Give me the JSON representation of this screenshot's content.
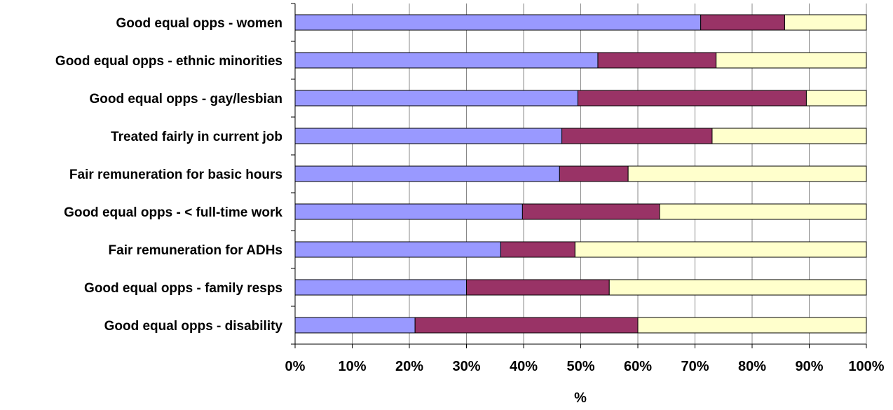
{
  "chart_data": {
    "type": "bar",
    "orientation": "horizontal",
    "stacked": "percent",
    "title": "",
    "xlabel": "%",
    "ylabel": "",
    "xlim": [
      0,
      100
    ],
    "x_ticks": [
      "0%",
      "10%",
      "20%",
      "30%",
      "40%",
      "50%",
      "60%",
      "70%",
      "80%",
      "90%",
      "100%"
    ],
    "grid": "vertical",
    "legend": "none",
    "categories": [
      "Good equal opps - women",
      "Good equal opps - ethnic minorities",
      "Good equal opps - gay/lesbian",
      "Treated fairly in current job",
      "Fair remuneration for basic hours",
      "Good equal opps - < full-time work",
      "Fair remuneration for ADHs",
      "Good equal opps - family resps",
      "Good equal opps - disability"
    ],
    "series": [
      {
        "color": "#9999ff",
        "values": [
          71,
          53,
          49.5,
          46.7,
          46.3,
          39.8,
          36,
          30,
          21
        ]
      },
      {
        "color": "#993366",
        "values": [
          14.7,
          20.7,
          40,
          26.3,
          12,
          24,
          13,
          25,
          39
        ]
      },
      {
        "color": "#ffffcc",
        "values": [
          14.3,
          26.3,
          10.5,
          27,
          41.7,
          36.2,
          51,
          45,
          40
        ]
      }
    ]
  }
}
